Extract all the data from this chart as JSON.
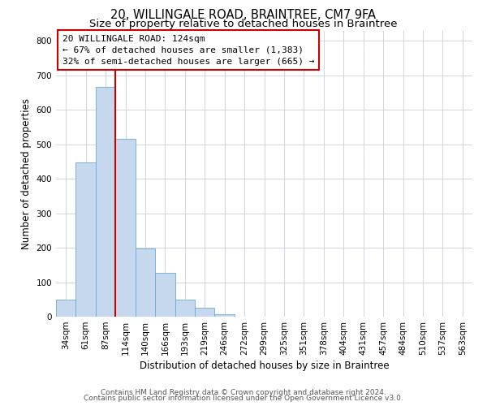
{
  "title1": "20, WILLINGALE ROAD, BRAINTREE, CM7 9FA",
  "title2": "Size of property relative to detached houses in Braintree",
  "xlabel": "Distribution of detached houses by size in Braintree",
  "ylabel": "Number of detached properties",
  "bin_labels": [
    "34sqm",
    "61sqm",
    "87sqm",
    "114sqm",
    "140sqm",
    "166sqm",
    "193sqm",
    "219sqm",
    "246sqm",
    "272sqm",
    "299sqm",
    "325sqm",
    "351sqm",
    "378sqm",
    "404sqm",
    "431sqm",
    "457sqm",
    "484sqm",
    "510sqm",
    "537sqm",
    "563sqm"
  ],
  "bar_heights": [
    50,
    447,
    667,
    516,
    197,
    127,
    50,
    27,
    8,
    0,
    0,
    0,
    0,
    0,
    0,
    0,
    0,
    0,
    0,
    0,
    0
  ],
  "bar_color": "#c5d8ed",
  "bar_edge_color": "#6aabd2",
  "bar_width": 1.0,
  "ylim": [
    0,
    830
  ],
  "yticks": [
    0,
    100,
    200,
    300,
    400,
    500,
    600,
    700,
    800
  ],
  "vline_x": 3.0,
  "vline_color": "#cc0000",
  "annotation_line1": "20 WILLINGALE ROAD: 124sqm",
  "annotation_line2": "← 67% of detached houses are smaller (1,383)",
  "annotation_line3": "32% of semi-detached houses are larger (665) →",
  "footer1": "Contains HM Land Registry data © Crown copyright and database right 2024.",
  "footer2": "Contains public sector information licensed under the Open Government Licence v3.0.",
  "background_color": "#ffffff",
  "grid_color": "#c8d0dc",
  "title1_fontsize": 10.5,
  "title2_fontsize": 9.5,
  "axis_label_fontsize": 8.5,
  "tick_fontsize": 7.5,
  "annotation_fontsize": 8.0,
  "footer_fontsize": 6.5
}
